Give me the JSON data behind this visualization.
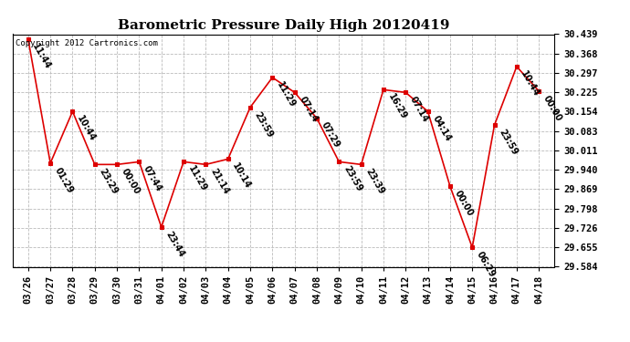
{
  "title": "Barometric Pressure Daily High 20120419",
  "copyright": "Copyright 2012 Cartronics.com",
  "x_labels": [
    "03/26",
    "03/27",
    "03/28",
    "03/29",
    "03/30",
    "03/31",
    "04/01",
    "04/02",
    "04/03",
    "04/04",
    "04/05",
    "04/06",
    "04/07",
    "04/08",
    "04/09",
    "04/10",
    "04/11",
    "04/12",
    "04/13",
    "04/14",
    "04/15",
    "04/16",
    "04/17",
    "04/18"
  ],
  "y_values": [
    30.42,
    29.965,
    30.155,
    29.96,
    29.96,
    29.97,
    29.73,
    29.97,
    29.96,
    29.98,
    30.17,
    30.28,
    30.225,
    30.13,
    29.97,
    29.96,
    30.235,
    30.225,
    30.155,
    29.88,
    29.655,
    30.105,
    30.32,
    30.23
  ],
  "point_labels": [
    "11:44",
    "01:29",
    "10:44",
    "23:29",
    "00:00",
    "07:44",
    "23:44",
    "11:29",
    "21:14",
    "10:14",
    "23:59",
    "11:29",
    "07:14",
    "07:29",
    "23:59",
    "23:39",
    "16:29",
    "07:14",
    "04:14",
    "00:00",
    "06:29",
    "23:59",
    "10:44",
    "00:00"
  ],
  "ylim_min": 29.584,
  "ylim_max": 30.439,
  "ytick_values": [
    29.584,
    29.655,
    29.726,
    29.798,
    29.869,
    29.94,
    30.011,
    30.083,
    30.154,
    30.225,
    30.297,
    30.368,
    30.439
  ],
  "line_color": "#dd0000",
  "marker_color": "#dd0000",
  "bg_color": "#ffffff",
  "grid_color": "#bbbbbb",
  "title_fontsize": 11,
  "label_fontsize": 7,
  "tick_fontsize": 7.5,
  "copyright_fontsize": 6.5
}
